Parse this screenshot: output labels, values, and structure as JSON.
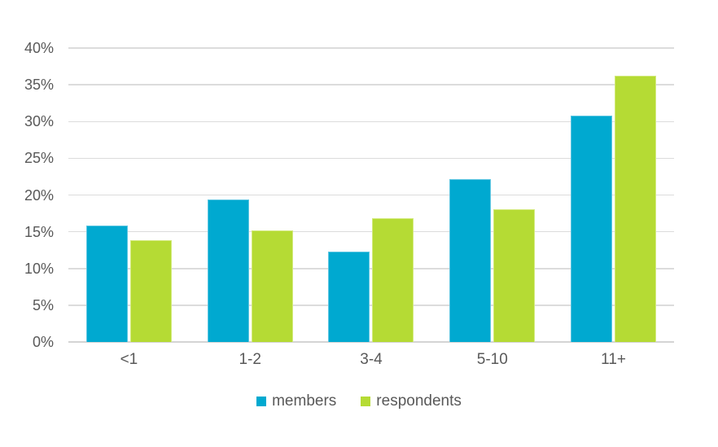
{
  "chart_data": {
    "type": "bar",
    "title": "",
    "xlabel": "",
    "ylabel": "",
    "categories": [
      "<1",
      "1-2",
      "3-4",
      "5-10",
      "11+"
    ],
    "series": [
      {
        "name": "members",
        "values": [
          15.8,
          19.4,
          12.3,
          22.2,
          30.8
        ],
        "color": "#00A9D0",
        "edge_color": "#5FC6E2"
      },
      {
        "name": "respondents",
        "values": [
          13.9,
          15.2,
          16.8,
          18.1,
          36.2
        ],
        "color": "#B5DB34",
        "edge_color": "#D3EA7E"
      }
    ],
    "ylim": [
      0,
      40
    ],
    "ytick_step": 5,
    "ytick_labels": [
      "0%",
      "5%",
      "10%",
      "15%",
      "20%",
      "25%",
      "30%",
      "35%",
      "40%"
    ],
    "grid": true,
    "legend_position": "bottom",
    "background_color": "#FFFFFF",
    "text_color": "#595959",
    "gridline_color": "#DCDCDC"
  }
}
